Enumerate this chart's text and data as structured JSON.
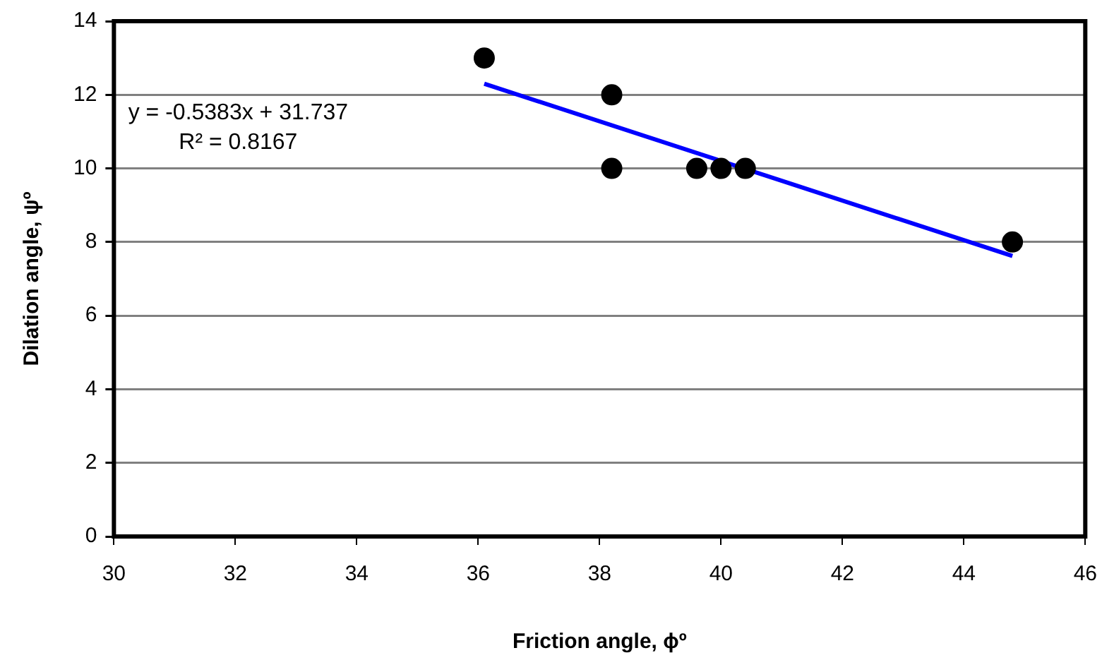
{
  "chart_data": {
    "type": "scatter",
    "xlabel": "Friction angle, ϕº",
    "ylabel": "Dilation angle, ψº",
    "x": [
      36.1,
      38.2,
      38.2,
      39.6,
      40.0,
      40.4,
      44.8
    ],
    "series": [
      {
        "color": "#000000",
        "marker": "circle",
        "values": [
          13,
          12,
          10,
          10,
          10,
          10,
          8
        ]
      },
      {
        "type": "line",
        "color": "#0000ff",
        "marker": "none",
        "line_style": "solid",
        "x": [
          36.1,
          44.8
        ],
        "values": [
          12.3,
          7.62
        ]
      }
    ],
    "annotations": [
      "y = -0.5383x + 31.737",
      "R² = 0.8167"
    ],
    "xlim": [
      30,
      46
    ],
    "xticks": [
      30,
      32,
      34,
      36,
      38,
      40,
      42,
      44,
      46
    ],
    "ylim": [
      0,
      14
    ],
    "yticks": [
      0,
      2,
      4,
      6,
      8,
      10,
      12,
      14
    ],
    "grid": "y",
    "legend": false
  }
}
